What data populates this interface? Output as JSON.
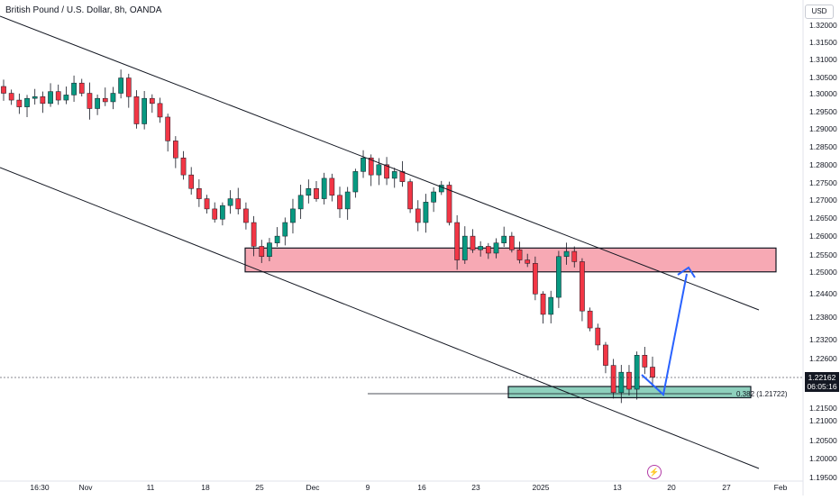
{
  "header": {
    "title": "British Pound / U.S. Dollar, 8h, OANDA",
    "currency": "USD"
  },
  "last_price": {
    "value": "1.22162",
    "countdown": "06:05:16"
  },
  "fib": {
    "label": "0.382 (1.21722)",
    "level": 1.21722
  },
  "colors": {
    "up": "#089981",
    "down": "#f23645",
    "resistance_zone": "#f7a9b4",
    "support_zone": "#8ed0bd",
    "arrow": "#2962ff"
  },
  "chart_data": {
    "type": "candlestick",
    "title": "British Pound / U.S. Dollar, 8h, OANDA",
    "ylim": [
      1.193,
      1.324
    ],
    "yticks": [
      "1.32000",
      "1.31500",
      "1.31000",
      "1.30500",
      "1.30000",
      "1.29500",
      "1.29000",
      "1.28500",
      "1.28000",
      "1.27500",
      "1.27000",
      "1.26500",
      "1.26000",
      "1.25500",
      "1.25000",
      "1.24400",
      "1.23800",
      "1.23200",
      "1.22600",
      "1.21500",
      "1.21000",
      "1.20500",
      "1.20000",
      "1.19500"
    ],
    "xticks": [
      "16:30",
      "Nov",
      "11",
      "18",
      "25",
      "Dec",
      "9",
      "16",
      "23",
      "2025",
      "13",
      "20",
      "27",
      "Feb"
    ],
    "close_path": [
      1.3,
      1.298,
      1.296,
      1.2985,
      1.299,
      1.297,
      1.3005,
      1.298,
      1.2995,
      1.303,
      1.3,
      1.2955,
      1.2985,
      1.2975,
      1.3,
      1.3045,
      1.299,
      1.291,
      1.2985,
      1.297,
      1.293,
      1.286,
      1.281,
      1.276,
      1.272,
      1.269,
      1.266,
      1.263,
      1.267,
      1.269,
      1.266,
      1.262,
      1.255,
      1.252,
      1.256,
      1.258,
      1.262,
      1.266,
      1.27,
      1.272,
      1.269,
      1.275,
      1.27,
      1.266,
      1.271,
      1.277,
      1.281,
      1.276,
      1.279,
      1.275,
      1.277,
      1.274,
      1.266,
      1.262,
      1.268,
      1.271,
      1.273,
      1.262,
      1.251,
      1.258,
      1.254,
      1.255,
      1.253,
      1.256,
      1.258,
      1.254,
      1.251,
      1.25,
      1.241,
      1.235,
      1.24,
      1.252,
      1.2535,
      1.2505,
      1.236,
      1.231,
      1.226,
      1.22,
      1.212,
      1.218,
      1.213,
      1.223,
      1.2195,
      1.2165
    ],
    "resistance_zone": [
      1.2475,
      1.2545
    ],
    "support_zone": [
      1.2105,
      1.2138
    ]
  }
}
